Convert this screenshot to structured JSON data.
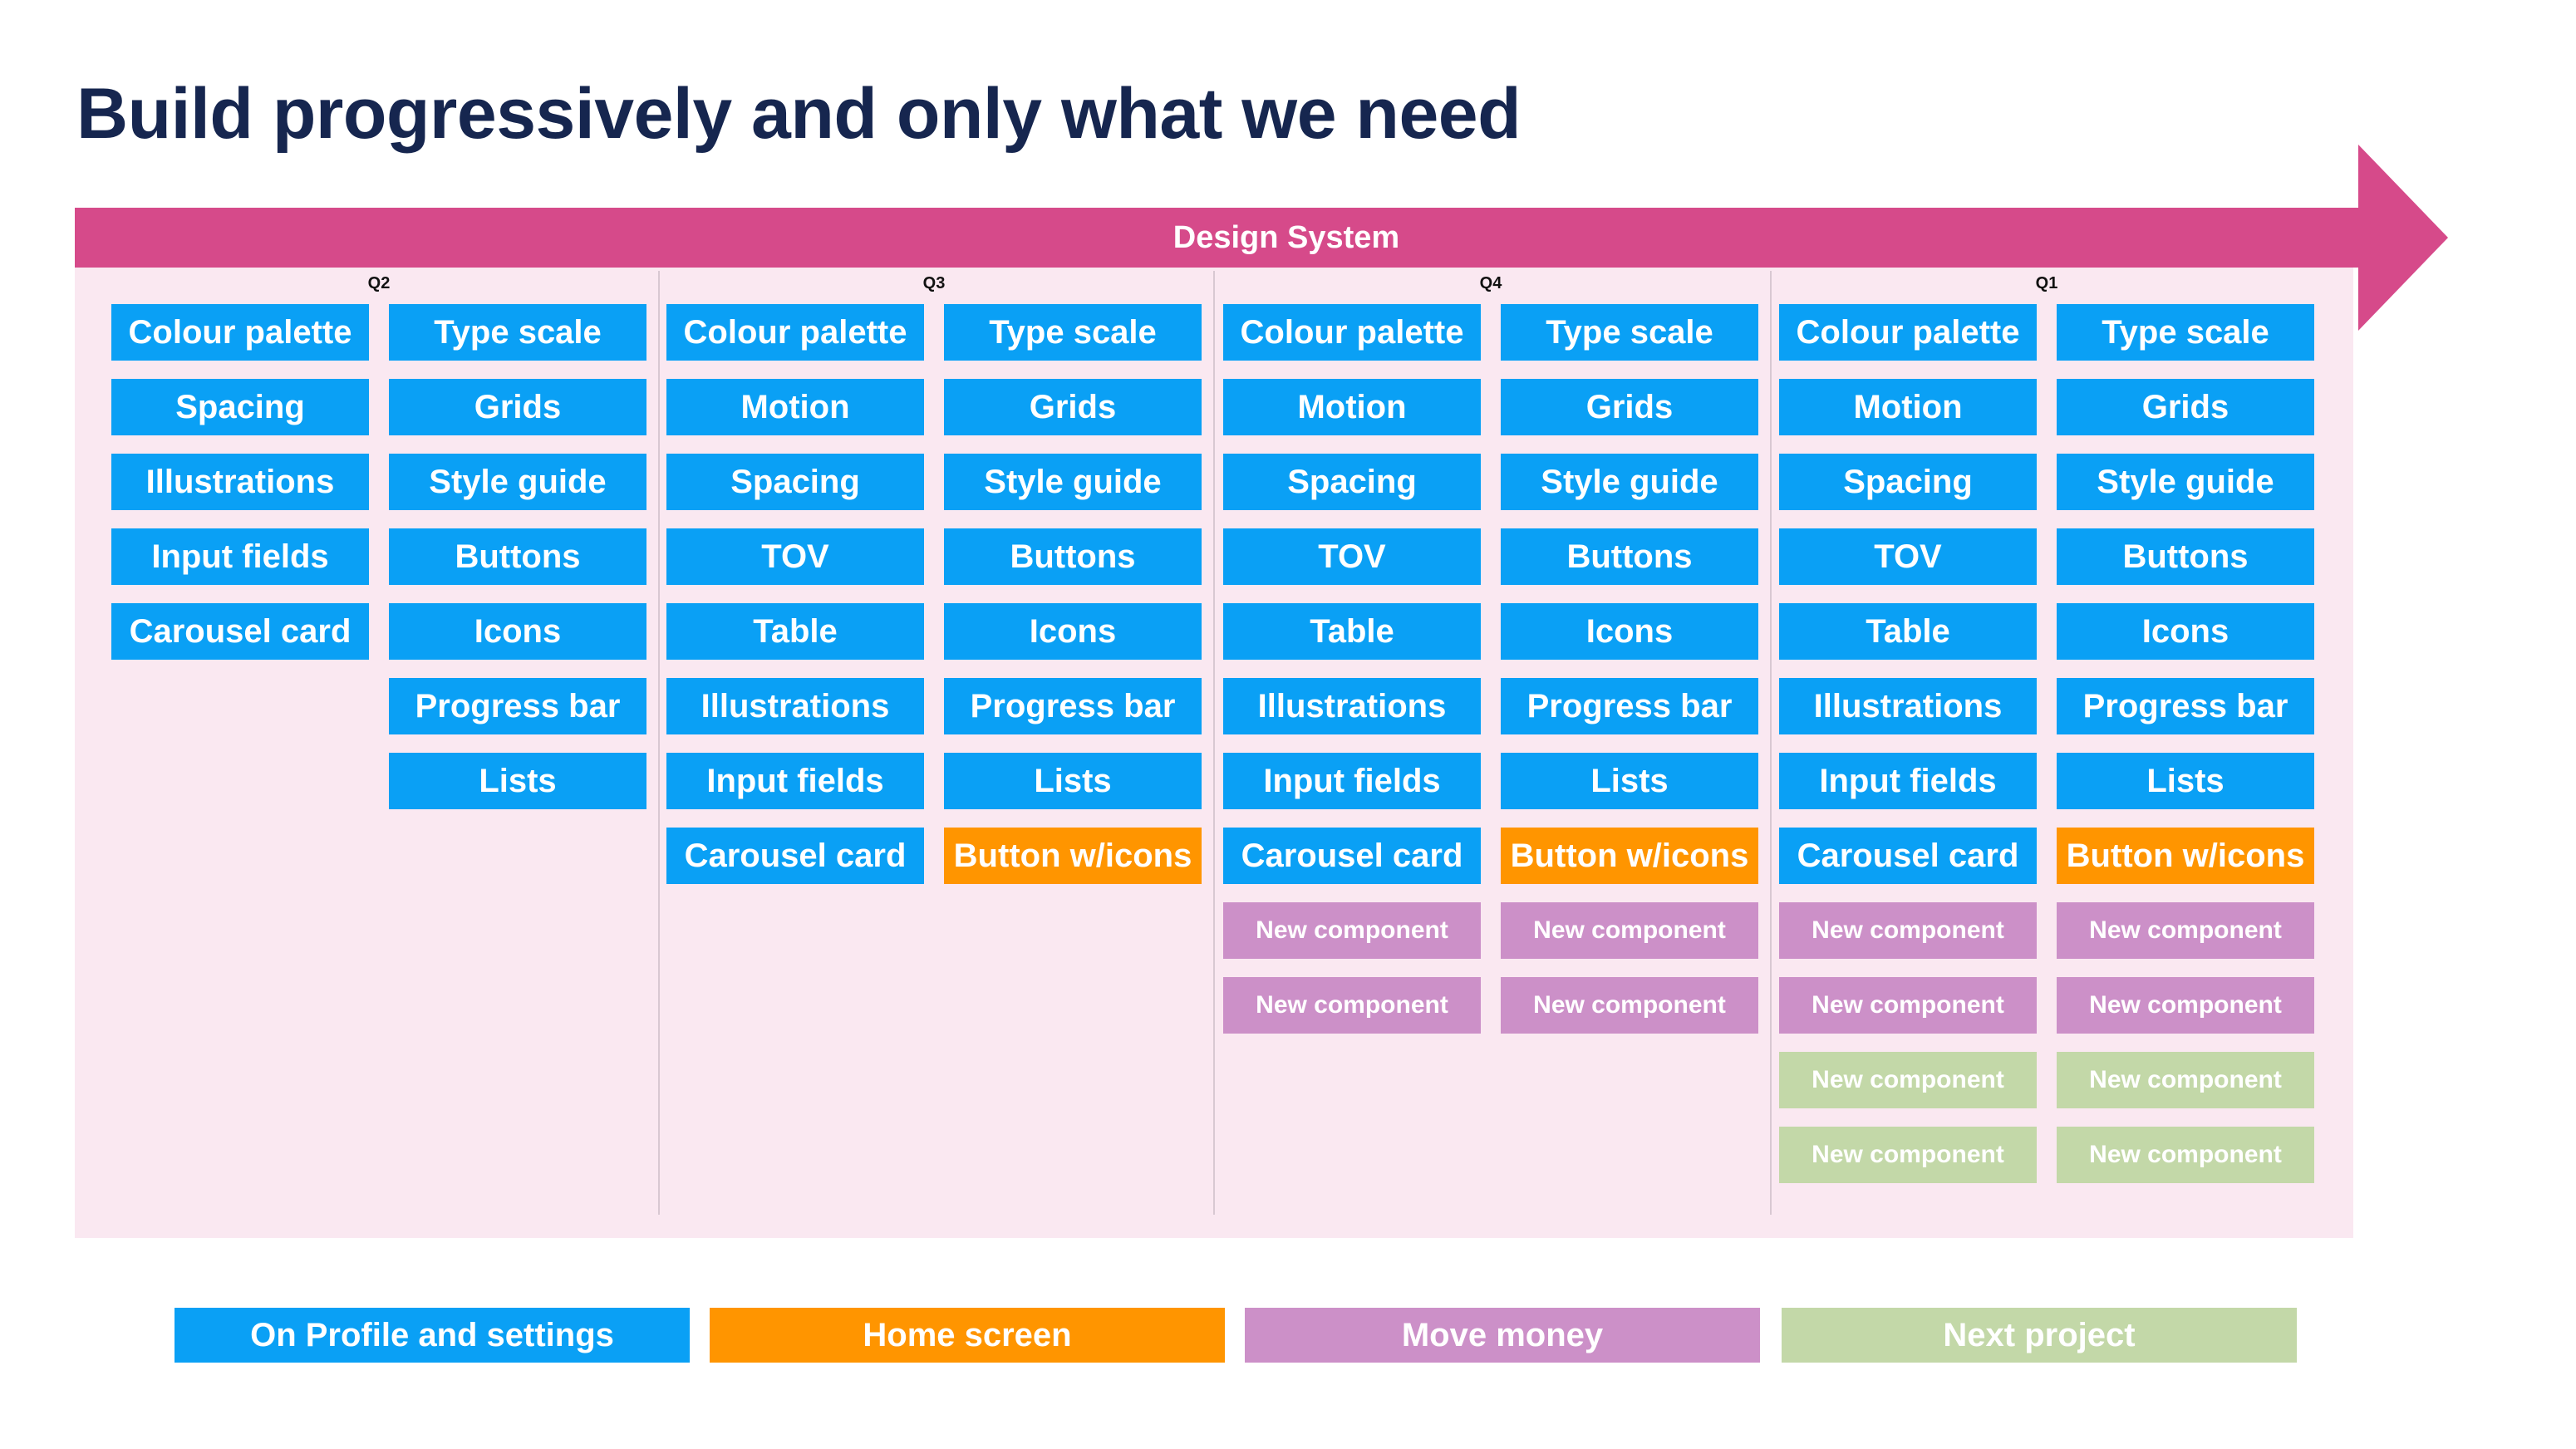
{
  "title": "Build progressively and only what we need",
  "banner": {
    "label": "Design System",
    "color": "#d64a8a"
  },
  "colors": {
    "profile": "#0aa0f5",
    "home": "#ff9500",
    "money": "#cc90c8",
    "next": "#c3d8a8"
  },
  "quarters": [
    {
      "label": "Q2",
      "columns": [
        [
          {
            "text": "Colour palette",
            "cat": "profile"
          },
          {
            "text": "Spacing",
            "cat": "profile"
          },
          {
            "text": "Illustrations",
            "cat": "profile"
          },
          {
            "text": "Input fields",
            "cat": "profile"
          },
          {
            "text": "Carousel card",
            "cat": "profile"
          }
        ],
        [
          {
            "text": "Type scale",
            "cat": "profile"
          },
          {
            "text": "Grids",
            "cat": "profile"
          },
          {
            "text": "Style guide",
            "cat": "profile"
          },
          {
            "text": "Buttons",
            "cat": "profile"
          },
          {
            "text": "Icons",
            "cat": "profile"
          },
          {
            "text": "Progress bar",
            "cat": "profile"
          },
          {
            "text": "Lists",
            "cat": "profile"
          }
        ]
      ]
    },
    {
      "label": "Q3",
      "columns": [
        [
          {
            "text": "Colour palette",
            "cat": "profile"
          },
          {
            "text": "Motion",
            "cat": "profile"
          },
          {
            "text": "Spacing",
            "cat": "profile"
          },
          {
            "text": "TOV",
            "cat": "profile"
          },
          {
            "text": "Table",
            "cat": "profile"
          },
          {
            "text": "Illustrations",
            "cat": "profile"
          },
          {
            "text": "Input fields",
            "cat": "profile"
          },
          {
            "text": "Carousel card",
            "cat": "profile"
          }
        ],
        [
          {
            "text": "Type scale",
            "cat": "profile"
          },
          {
            "text": "Grids",
            "cat": "profile"
          },
          {
            "text": "Style guide",
            "cat": "profile"
          },
          {
            "text": "Buttons",
            "cat": "profile"
          },
          {
            "text": "Icons",
            "cat": "profile"
          },
          {
            "text": "Progress bar",
            "cat": "profile"
          },
          {
            "text": "Lists",
            "cat": "profile"
          },
          {
            "text": "Button w/icons",
            "cat": "home"
          }
        ]
      ]
    },
    {
      "label": "Q4",
      "columns": [
        [
          {
            "text": "Colour palette",
            "cat": "profile"
          },
          {
            "text": "Motion",
            "cat": "profile"
          },
          {
            "text": "Spacing",
            "cat": "profile"
          },
          {
            "text": "TOV",
            "cat": "profile"
          },
          {
            "text": "Table",
            "cat": "profile"
          },
          {
            "text": "Illustrations",
            "cat": "profile"
          },
          {
            "text": "Input fields",
            "cat": "profile"
          },
          {
            "text": "Carousel card",
            "cat": "profile"
          },
          {
            "text": "New component",
            "cat": "money"
          },
          {
            "text": "New component",
            "cat": "money"
          }
        ],
        [
          {
            "text": "Type scale",
            "cat": "profile"
          },
          {
            "text": "Grids",
            "cat": "profile"
          },
          {
            "text": "Style guide",
            "cat": "profile"
          },
          {
            "text": "Buttons",
            "cat": "profile"
          },
          {
            "text": "Icons",
            "cat": "profile"
          },
          {
            "text": "Progress bar",
            "cat": "profile"
          },
          {
            "text": "Lists",
            "cat": "profile"
          },
          {
            "text": "Button w/icons",
            "cat": "home"
          },
          {
            "text": "New component",
            "cat": "money"
          },
          {
            "text": "New component",
            "cat": "money"
          }
        ]
      ]
    },
    {
      "label": "Q1",
      "columns": [
        [
          {
            "text": "Colour palette",
            "cat": "profile"
          },
          {
            "text": "Motion",
            "cat": "profile"
          },
          {
            "text": "Spacing",
            "cat": "profile"
          },
          {
            "text": "TOV",
            "cat": "profile"
          },
          {
            "text": "Table",
            "cat": "profile"
          },
          {
            "text": "Illustrations",
            "cat": "profile"
          },
          {
            "text": "Input fields",
            "cat": "profile"
          },
          {
            "text": "Carousel card",
            "cat": "profile"
          },
          {
            "text": "New component",
            "cat": "money"
          },
          {
            "text": "New component",
            "cat": "money"
          },
          {
            "text": "New component",
            "cat": "next"
          },
          {
            "text": "New component",
            "cat": "next"
          }
        ],
        [
          {
            "text": "Type scale",
            "cat": "profile"
          },
          {
            "text": "Grids",
            "cat": "profile"
          },
          {
            "text": "Style guide",
            "cat": "profile"
          },
          {
            "text": "Buttons",
            "cat": "profile"
          },
          {
            "text": "Icons",
            "cat": "profile"
          },
          {
            "text": "Progress bar",
            "cat": "profile"
          },
          {
            "text": "Lists",
            "cat": "profile"
          },
          {
            "text": "Button w/icons",
            "cat": "home"
          },
          {
            "text": "New component",
            "cat": "money"
          },
          {
            "text": "New component",
            "cat": "money"
          },
          {
            "text": "New component",
            "cat": "next"
          },
          {
            "text": "New component",
            "cat": "next"
          }
        ]
      ]
    }
  ],
  "legend": [
    {
      "label": "On Profile and settings",
      "cat": "profile"
    },
    {
      "label": "Home screen",
      "cat": "home"
    },
    {
      "label": "Move money",
      "cat": "money"
    },
    {
      "label": "Next project",
      "cat": "next"
    }
  ]
}
